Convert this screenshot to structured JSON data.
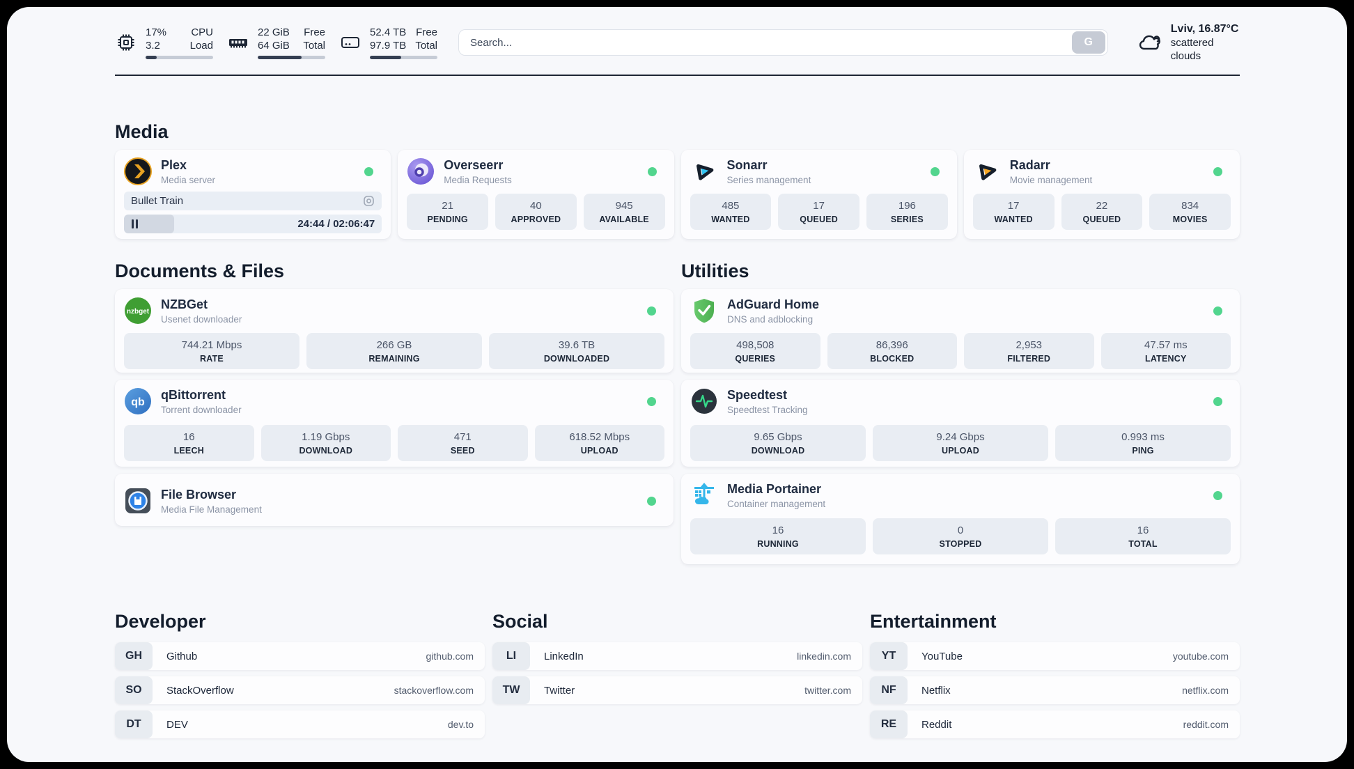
{
  "colors": {
    "status_online": "#52d58e",
    "accent_dark": "#1e2635"
  },
  "header": {
    "system": [
      {
        "icon": "cpu-icon",
        "value1": "17%",
        "value2": "3.2",
        "label1": "CPU",
        "label2": "Load",
        "progress_pct": 17
      },
      {
        "icon": "ram-icon",
        "value1": "22 GiB",
        "value2": "64 GiB",
        "label1": "Free",
        "label2": "Total",
        "progress_pct": 65
      },
      {
        "icon": "disk-icon",
        "value1": "52.4 TB",
        "value2": "97.9 TB",
        "label1": "Free",
        "label2": "Total",
        "progress_pct": 46
      }
    ],
    "search": {
      "placeholder": "Search...",
      "button_label": "G"
    },
    "weather": {
      "line1": "Lviv, 16.87°C",
      "line2": "scattered clouds"
    }
  },
  "sections": {
    "media": "Media",
    "documents": "Documents & Files",
    "utilities": "Utilities",
    "developer": "Developer",
    "social": "Social",
    "entertainment": "Entertainment"
  },
  "apps": {
    "plex": {
      "name": "Plex",
      "desc": "Media server",
      "media": {
        "title": "Bullet Train",
        "time": "24:44 / 02:06:47",
        "progress_pct": 19.5
      }
    },
    "overseerr": {
      "name": "Overseerr",
      "desc": "Media Requests",
      "stats": [
        {
          "v": "21",
          "l": "PENDING"
        },
        {
          "v": "40",
          "l": "APPROVED"
        },
        {
          "v": "945",
          "l": "AVAILABLE"
        }
      ]
    },
    "sonarr": {
      "name": "Sonarr",
      "desc": "Series management",
      "stats": [
        {
          "v": "485",
          "l": "WANTED"
        },
        {
          "v": "17",
          "l": "QUEUED"
        },
        {
          "v": "196",
          "l": "SERIES"
        }
      ]
    },
    "radarr": {
      "name": "Radarr",
      "desc": "Movie management",
      "stats": [
        {
          "v": "17",
          "l": "WANTED"
        },
        {
          "v": "22",
          "l": "QUEUED"
        },
        {
          "v": "834",
          "l": "MOVIES"
        }
      ]
    },
    "nzbget": {
      "name": "NZBGet",
      "desc": "Usenet downloader",
      "icon_text": "nzbget",
      "stats": [
        {
          "v": "744.21 Mbps",
          "l": "RATE"
        },
        {
          "v": "266 GB",
          "l": "REMAINING"
        },
        {
          "v": "39.6 TB",
          "l": "DOWNLOADED"
        }
      ]
    },
    "qbittorrent": {
      "name": "qBittorrent",
      "desc": "Torrent downloader",
      "icon_text": "qb",
      "stats": [
        {
          "v": "16",
          "l": "LEECH"
        },
        {
          "v": "1.19 Gbps",
          "l": "DOWNLOAD"
        },
        {
          "v": "471",
          "l": "SEED"
        },
        {
          "v": "618.52 Mbps",
          "l": "UPLOAD"
        }
      ]
    },
    "filebrowser": {
      "name": "File Browser",
      "desc": "Media File Management"
    },
    "adguard": {
      "name": "AdGuard Home",
      "desc": "DNS and adblocking",
      "stats": [
        {
          "v": "498,508",
          "l": "QUERIES"
        },
        {
          "v": "86,396",
          "l": "BLOCKED"
        },
        {
          "v": "2,953",
          "l": "FILTERED"
        },
        {
          "v": "47.57 ms",
          "l": "LATENCY"
        }
      ]
    },
    "speedtest": {
      "name": "Speedtest",
      "desc": "Speedtest Tracking",
      "stats": [
        {
          "v": "9.65 Gbps",
          "l": "DOWNLOAD"
        },
        {
          "v": "9.24 Gbps",
          "l": "UPLOAD"
        },
        {
          "v": "0.993 ms",
          "l": "PING"
        }
      ]
    },
    "portainer": {
      "name": "Media Portainer",
      "desc": "Container management",
      "stats": [
        {
          "v": "16",
          "l": "RUNNING"
        },
        {
          "v": "0",
          "l": "STOPPED"
        },
        {
          "v": "16",
          "l": "TOTAL"
        }
      ]
    }
  },
  "bookmarks": {
    "developer": [
      {
        "tag": "GH",
        "name": "Github",
        "url": "github.com"
      },
      {
        "tag": "SO",
        "name": "StackOverflow",
        "url": "stackoverflow.com"
      },
      {
        "tag": "DT",
        "name": "DEV",
        "url": "dev.to"
      }
    ],
    "social": [
      {
        "tag": "LI",
        "name": "LinkedIn",
        "url": "linkedin.com"
      },
      {
        "tag": "TW",
        "name": "Twitter",
        "url": "twitter.com"
      }
    ],
    "entertainment": [
      {
        "tag": "YT",
        "name": "YouTube",
        "url": "youtube.com"
      },
      {
        "tag": "NF",
        "name": "Netflix",
        "url": "netflix.com"
      },
      {
        "tag": "RE",
        "name": "Reddit",
        "url": "reddit.com"
      }
    ]
  }
}
